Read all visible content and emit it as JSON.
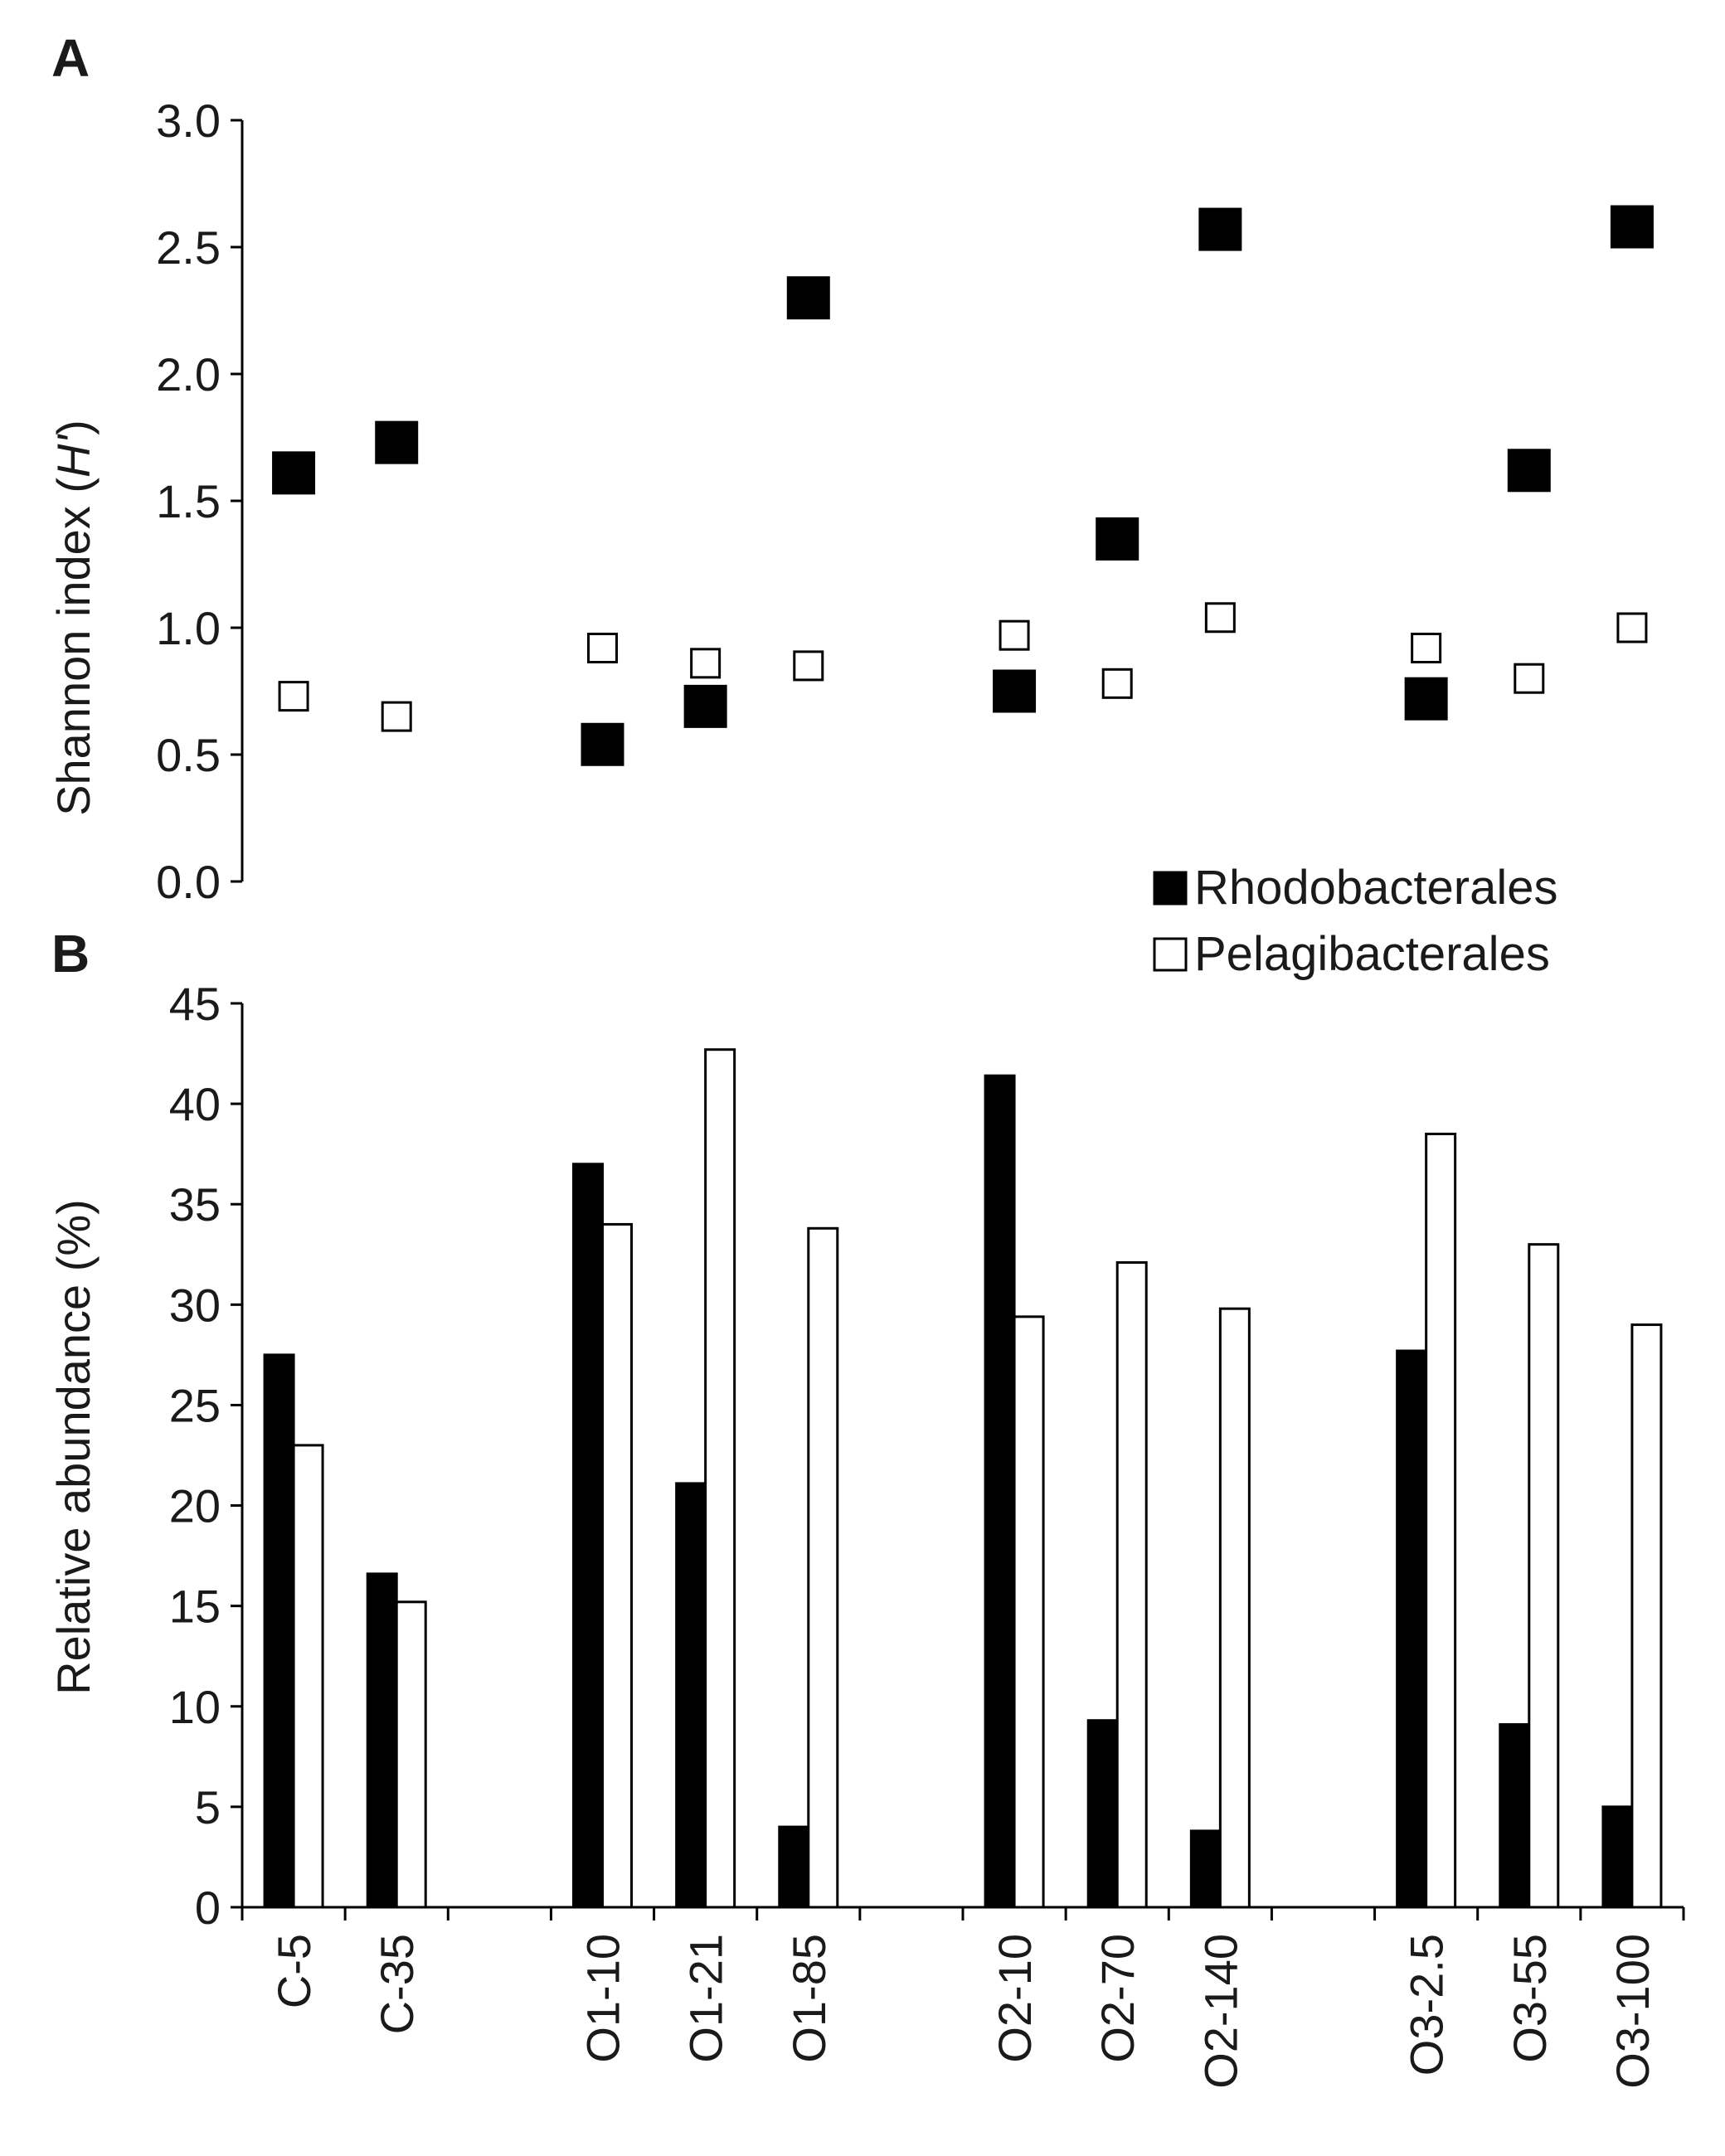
{
  "figure": {
    "panels": [
      "A",
      "B"
    ],
    "legend": {
      "rhodo_label": "Rhodobacterales",
      "pelagi_label": "Pelagibacterales",
      "rhodo_color": "#000000",
      "pelagi_color": "#ffffff"
    }
  },
  "chart_data": [
    {
      "type": "scatter",
      "panel": "A",
      "title": "",
      "ylabel": "Shannon index (H')",
      "ylabel_prefix": "Shannon index (",
      "ylabel_italic": "H'",
      "ylabel_suffix": ")",
      "ylim": [
        0,
        3.0
      ],
      "yticks": [
        "0.0",
        "0.5",
        "1.0",
        "1.5",
        "2.0",
        "2.5",
        "3.0"
      ],
      "categories": [
        "C-5",
        "C-35",
        "",
        "O1-10",
        "O1-21",
        "O1-85",
        "",
        "O2-10",
        "O2-70",
        "O2-140",
        "",
        "O3-2.5",
        "O3-55",
        "O3-100"
      ],
      "series": [
        {
          "name": "Rhodobacterales",
          "marker": "filled-square",
          "values": [
            1.61,
            1.73,
            null,
            0.54,
            0.69,
            2.3,
            null,
            0.75,
            1.35,
            2.57,
            null,
            0.72,
            1.62,
            2.58
          ]
        },
        {
          "name": "Pelagibacterales",
          "marker": "open-square",
          "values": [
            0.73,
            0.65,
            null,
            0.92,
            0.86,
            0.85,
            null,
            0.97,
            0.78,
            1.04,
            null,
            0.92,
            0.8,
            1.0
          ]
        }
      ]
    },
    {
      "type": "bar",
      "panel": "B",
      "title": "",
      "ylabel": "Relative abundance  (%)",
      "ylim": [
        0,
        45
      ],
      "yticks": [
        "0",
        "5",
        "10",
        "15",
        "20",
        "25",
        "30",
        "35",
        "40",
        "45"
      ],
      "categories": [
        "C-5",
        "C-35",
        "",
        "O1-10",
        "O1-21",
        "O1-85",
        "",
        "O2-10",
        "O2-70",
        "O2-140",
        "",
        "O3-2.5",
        "O3-55",
        "O3-100"
      ],
      "series": [
        {
          "name": "Rhodobacterales",
          "fill": "#000000",
          "values": [
            27.5,
            16.6,
            null,
            37.0,
            21.1,
            4.0,
            null,
            41.4,
            9.3,
            3.8,
            null,
            27.7,
            9.1,
            5.0
          ]
        },
        {
          "name": "Pelagibacterales",
          "fill": "#ffffff",
          "values": [
            23.0,
            15.2,
            null,
            34.0,
            42.7,
            33.8,
            null,
            29.4,
            32.1,
            29.8,
            null,
            38.5,
            33.0,
            29.0
          ]
        }
      ]
    }
  ]
}
